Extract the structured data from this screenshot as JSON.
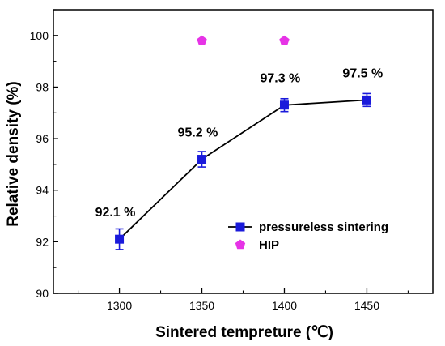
{
  "chart_data": {
    "type": "line",
    "xlabel": "Sintered tempreture (℃)",
    "ylabel": "Relative density (%)",
    "xlim": [
      1260,
      1490
    ],
    "ylim": [
      90,
      101
    ],
    "xticks": [
      "1300",
      "1350",
      "1400",
      "1450"
    ],
    "xtick_values": [
      1300,
      1350,
      1400,
      1450
    ],
    "yticks": [
      "90",
      "92",
      "94",
      "96",
      "98",
      "100"
    ],
    "ytick_values": [
      90,
      92,
      94,
      96,
      98,
      100
    ],
    "grid": false,
    "legend_position": "bottom-right",
    "series": [
      {
        "name": "pressureless sintering",
        "marker": "square",
        "color": "#1a1adb",
        "x": [
          1300,
          1350,
          1400,
          1450
        ],
        "y": [
          92.1,
          95.2,
          97.3,
          97.5
        ],
        "error": [
          0.4,
          0.3,
          0.25,
          0.25
        ],
        "labels": [
          "92.1 %",
          "95.2 %",
          "97.3 %",
          "97.5 %"
        ]
      },
      {
        "name": "HIP",
        "marker": "pentagon",
        "color": "#e633e6",
        "x": [
          1350,
          1400
        ],
        "y": [
          99.8,
          99.8
        ]
      }
    ]
  }
}
